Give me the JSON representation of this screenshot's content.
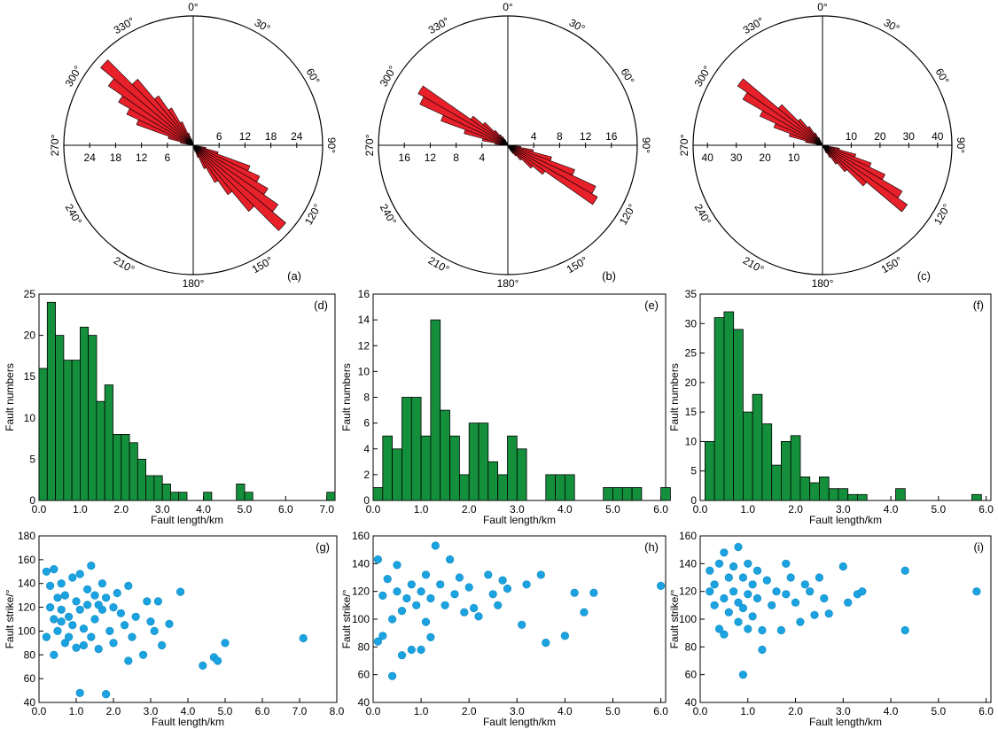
{
  "colors": {
    "rose": "#e8202a",
    "hist": "#14903c",
    "scatter": "#1aa3e0"
  },
  "chart_data": [
    {
      "type": "rose",
      "panel_label": "(a)",
      "direction_labels": [
        "0°",
        "30°",
        "60°",
        "90°",
        "120°",
        "150°",
        "180°",
        "210°",
        "240°",
        "270°",
        "300°",
        "330°"
      ],
      "radial_max": 30,
      "radial_ticks": [
        6,
        12,
        18,
        24
      ],
      "bin_width_deg": 5,
      "bins_start_deg": [
        100,
        105,
        110,
        115,
        120,
        125,
        130,
        135,
        140,
        145,
        150,
        155,
        160
      ],
      "values": [
        3,
        6,
        14,
        17,
        20,
        24,
        28,
        20,
        14,
        10,
        6,
        3,
        1.5
      ]
    },
    {
      "type": "rose",
      "panel_label": "(b)",
      "direction_labels": [
        "0°",
        "30°",
        "60°",
        "90°",
        "120°",
        "150°",
        "180°",
        "210°",
        "240°",
        "270°",
        "300°",
        "330°"
      ],
      "radial_max": 20,
      "radial_ticks": [
        4,
        8,
        12,
        16
      ],
      "bin_width_deg": 5,
      "bins_start_deg": [
        95,
        100,
        105,
        110,
        115,
        120,
        125,
        130,
        135,
        140,
        145,
        150,
        155
      ],
      "values": [
        2,
        4,
        7,
        11,
        15,
        16,
        7,
        5,
        3,
        2,
        1.5,
        1,
        0.5
      ]
    },
    {
      "type": "rose",
      "panel_label": "(c)",
      "direction_labels": [
        "0°",
        "30°",
        "60°",
        "90°",
        "120°",
        "150°",
        "180°",
        "210°",
        "240°",
        "270°",
        "300°",
        "330°"
      ],
      "radial_max": 45,
      "radial_ticks": [
        10,
        20,
        30,
        40
      ],
      "bin_width_deg": 5,
      "bins_start_deg": [
        95,
        100,
        105,
        110,
        115,
        120,
        125,
        130,
        135,
        140,
        145,
        150,
        155
      ],
      "values": [
        2,
        6,
        12,
        18,
        24,
        32,
        36,
        20,
        12,
        8,
        5,
        3,
        1
      ]
    },
    {
      "type": "bar",
      "panel_label": "(d)",
      "xlabel": "Fault length/km",
      "ylabel": "Fault numbers",
      "xlim": [
        0,
        7.2
      ],
      "ylim": [
        0,
        25
      ],
      "bin_width": 0.2,
      "xticks": [
        0,
        1,
        2,
        3,
        4,
        5,
        6,
        7
      ],
      "xtick_labels": [
        "0.0",
        "1.0",
        "2.0",
        "3.0",
        "4.0",
        "5.0",
        "6.0",
        "7.0"
      ],
      "yticks": [
        0,
        5,
        10,
        15,
        20,
        25
      ],
      "values": [
        16,
        24,
        20,
        17,
        17,
        21,
        20,
        12,
        14,
        8,
        8,
        7,
        5,
        3,
        3,
        2,
        1,
        1,
        0,
        0,
        1,
        0,
        0,
        0,
        2,
        1,
        0,
        0,
        0,
        0,
        0,
        0,
        0,
        0,
        0,
        1
      ]
    },
    {
      "type": "bar",
      "panel_label": "(e)",
      "xlabel": "Fault length/km",
      "ylabel": "Fault numbers",
      "xlim": [
        0,
        6.1
      ],
      "ylim": [
        0,
        16
      ],
      "bin_width": 0.2,
      "xticks": [
        0,
        1,
        2,
        3,
        4,
        5,
        6
      ],
      "xtick_labels": [
        "0.0",
        "1.0",
        "2.0",
        "3.0",
        "4.0",
        "5.0",
        "6.0"
      ],
      "yticks": [
        0,
        2,
        4,
        6,
        8,
        10,
        12,
        14,
        16
      ],
      "values": [
        1,
        5,
        4,
        8,
        8,
        5,
        14,
        7,
        5,
        2,
        6,
        6,
        3,
        2,
        5,
        4,
        0,
        0,
        2,
        2,
        2,
        0,
        0,
        0,
        1,
        1,
        1,
        1,
        0,
        0,
        1
      ]
    },
    {
      "type": "bar",
      "panel_label": "(f)",
      "xlabel": "Fault length/km",
      "ylabel": "Fault numbers",
      "xlim": [
        0,
        6.1
      ],
      "ylim": [
        0,
        35
      ],
      "bin_width": 0.2,
      "bars_start": 0.1,
      "xticks": [
        0,
        1,
        2,
        3,
        4,
        5,
        6
      ],
      "xtick_labels": [
        "0.0",
        "1.0",
        "2.0",
        "3.0",
        "4.0",
        "5.0",
        "6.0"
      ],
      "yticks": [
        0,
        5,
        10,
        15,
        20,
        25,
        30,
        35
      ],
      "values": [
        10,
        31,
        32,
        29,
        15,
        18,
        13,
        6,
        10,
        11,
        4,
        3,
        4,
        2,
        2,
        1,
        1,
        0,
        0,
        0,
        2,
        0,
        0,
        0,
        0,
        0,
        0,
        0,
        1
      ]
    },
    {
      "type": "scatter",
      "panel_label": "(g)",
      "xlabel": "Fault length/km",
      "ylabel": "Fault strike/°",
      "xlim": [
        0,
        8.0
      ],
      "ylim": [
        40,
        180
      ],
      "xticks": [
        0,
        1,
        2,
        3,
        4,
        5,
        6,
        7,
        8
      ],
      "xtick_labels": [
        "0.0",
        "1.0",
        "2.0",
        "3.0",
        "4.0",
        "5.0",
        "6.0",
        "7.0",
        "8.0"
      ],
      "yticks": [
        40,
        60,
        80,
        100,
        120,
        140,
        160,
        180
      ],
      "points": [
        [
          0.2,
          150
        ],
        [
          0.3,
          138
        ],
        [
          0.3,
          120
        ],
        [
          0.4,
          152
        ],
        [
          0.4,
          110
        ],
        [
          0.5,
          128
        ],
        [
          0.5,
          100
        ],
        [
          0.6,
          140
        ],
        [
          0.6,
          118
        ],
        [
          0.7,
          90
        ],
        [
          0.7,
          130
        ],
        [
          0.8,
          112
        ],
        [
          0.9,
          145
        ],
        [
          0.9,
          105
        ],
        [
          1.0,
          125
        ],
        [
          1.0,
          86
        ],
        [
          1.1,
          148
        ],
        [
          1.1,
          118
        ],
        [
          1.2,
          102
        ],
        [
          1.3,
          135
        ],
        [
          1.3,
          122
        ],
        [
          1.4,
          155
        ],
        [
          1.4,
          95
        ],
        [
          1.5,
          130
        ],
        [
          1.5,
          110
        ],
        [
          1.6,
          85
        ],
        [
          1.7,
          140
        ],
        [
          1.7,
          118
        ],
        [
          1.8,
          128
        ],
        [
          1.9,
          100
        ],
        [
          2.0,
          120
        ],
        [
          2.0,
          90
        ],
        [
          2.1,
          132
        ],
        [
          2.2,
          115
        ],
        [
          2.3,
          105
        ],
        [
          2.4,
          138
        ],
        [
          2.4,
          75
        ],
        [
          2.5,
          95
        ],
        [
          2.6,
          112
        ],
        [
          2.8,
          80
        ],
        [
          2.9,
          125
        ],
        [
          3.0,
          108
        ],
        [
          3.1,
          100
        ],
        [
          3.2,
          125
        ],
        [
          3.3,
          88
        ],
        [
          3.5,
          106
        ],
        [
          3.8,
          133
        ],
        [
          4.4,
          71
        ],
        [
          4.7,
          78
        ],
        [
          4.8,
          75
        ],
        [
          5.0,
          90
        ],
        [
          7.1,
          94
        ],
        [
          1.1,
          48
        ],
        [
          1.8,
          47
        ],
        [
          0.2,
          95
        ],
        [
          0.4,
          80
        ],
        [
          0.6,
          108
        ],
        [
          0.8,
          95
        ],
        [
          1.2,
          88
        ],
        [
          1.6,
          122
        ]
      ]
    },
    {
      "type": "scatter",
      "panel_label": "(h)",
      "xlabel": "Fault length/km",
      "ylabel": "Fault strike/°",
      "xlim": [
        0,
        6.1
      ],
      "ylim": [
        40,
        160
      ],
      "xticks": [
        0,
        1,
        2,
        3,
        4,
        5,
        6
      ],
      "xtick_labels": [
        "0.0",
        "1.0",
        "2.0",
        "3.0",
        "4.0",
        "5.0",
        "6.0"
      ],
      "yticks": [
        40,
        60,
        80,
        100,
        120,
        140,
        160
      ],
      "points": [
        [
          0.1,
          143
        ],
        [
          0.1,
          84
        ],
        [
          0.2,
          117
        ],
        [
          0.2,
          88
        ],
        [
          0.3,
          129
        ],
        [
          0.4,
          100
        ],
        [
          0.4,
          59
        ],
        [
          0.5,
          139
        ],
        [
          0.5,
          120
        ],
        [
          0.6,
          106
        ],
        [
          0.6,
          74
        ],
        [
          0.7,
          115
        ],
        [
          0.8,
          78
        ],
        [
          0.8,
          125
        ],
        [
          0.9,
          110
        ],
        [
          1.0,
          120
        ],
        [
          1.0,
          78
        ],
        [
          1.1,
          132
        ],
        [
          1.1,
          98
        ],
        [
          1.2,
          87
        ],
        [
          1.2,
          115
        ],
        [
          1.3,
          153
        ],
        [
          1.4,
          125
        ],
        [
          1.5,
          110
        ],
        [
          1.6,
          143
        ],
        [
          1.7,
          118
        ],
        [
          1.8,
          130
        ],
        [
          1.9,
          105
        ],
        [
          2.0,
          123
        ],
        [
          2.1,
          108
        ],
        [
          2.2,
          102
        ],
        [
          2.4,
          132
        ],
        [
          2.5,
          118
        ],
        [
          2.6,
          110
        ],
        [
          2.7,
          128
        ],
        [
          2.8,
          122
        ],
        [
          3.1,
          96
        ],
        [
          3.2,
          125
        ],
        [
          3.5,
          132
        ],
        [
          3.6,
          83
        ],
        [
          4.0,
          88
        ],
        [
          4.2,
          119
        ],
        [
          4.4,
          105
        ],
        [
          4.6,
          119
        ],
        [
          6.0,
          124
        ]
      ]
    },
    {
      "type": "scatter",
      "panel_label": "(i)",
      "xlabel": "Fault length/km",
      "ylabel": "Fault strike/°",
      "xlim": [
        0,
        6.1
      ],
      "ylim": [
        40,
        160
      ],
      "xticks": [
        0,
        1,
        2,
        3,
        4,
        5,
        6
      ],
      "xtick_labels": [
        "0.0",
        "1.0",
        "2.0",
        "3.0",
        "4.0",
        "5.0",
        "6.0"
      ],
      "yticks": [
        40,
        60,
        80,
        100,
        120,
        140,
        160
      ],
      "points": [
        [
          0.2,
          135
        ],
        [
          0.2,
          120
        ],
        [
          0.3,
          125
        ],
        [
          0.3,
          110
        ],
        [
          0.4,
          140
        ],
        [
          0.4,
          93
        ],
        [
          0.5,
          148
        ],
        [
          0.5,
          115
        ],
        [
          0.5,
          89
        ],
        [
          0.6,
          130
        ],
        [
          0.6,
          105
        ],
        [
          0.7,
          138
        ],
        [
          0.7,
          120
        ],
        [
          0.8,
          152
        ],
        [
          0.8,
          112
        ],
        [
          0.8,
          98
        ],
        [
          0.9,
          130
        ],
        [
          0.9,
          108
        ],
        [
          0.9,
          60
        ],
        [
          1.0,
          140
        ],
        [
          1.0,
          118
        ],
        [
          1.0,
          93
        ],
        [
          1.1,
          125
        ],
        [
          1.1,
          102
        ],
        [
          1.2,
          135
        ],
        [
          1.2,
          115
        ],
        [
          1.3,
          78
        ],
        [
          1.3,
          92
        ],
        [
          1.4,
          128
        ],
        [
          1.5,
          110
        ],
        [
          1.6,
          120
        ],
        [
          1.7,
          92
        ],
        [
          1.8,
          140
        ],
        [
          1.8,
          118
        ],
        [
          1.9,
          130
        ],
        [
          2.0,
          112
        ],
        [
          2.1,
          98
        ],
        [
          2.2,
          125
        ],
        [
          2.3,
          120
        ],
        [
          2.4,
          103
        ],
        [
          2.5,
          130
        ],
        [
          2.6,
          115
        ],
        [
          2.7,
          104
        ],
        [
          3.0,
          138
        ],
        [
          3.1,
          112
        ],
        [
          3.3,
          118
        ],
        [
          3.4,
          120
        ],
        [
          4.3,
          135
        ],
        [
          4.3,
          92
        ],
        [
          5.8,
          120
        ]
      ]
    }
  ]
}
